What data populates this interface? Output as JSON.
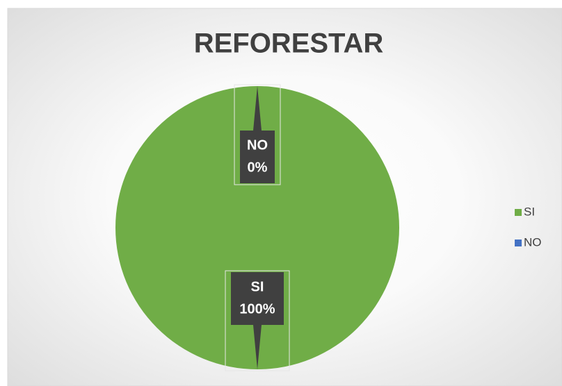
{
  "chart_data": {
    "type": "pie",
    "title": "REFORESTAR",
    "categories": [
      "SI",
      "NO"
    ],
    "values": [
      100,
      0
    ],
    "value_labels": [
      "100%",
      "0%"
    ],
    "colors": [
      "#70ad47",
      "#4472c4"
    ],
    "legend": "right"
  }
}
